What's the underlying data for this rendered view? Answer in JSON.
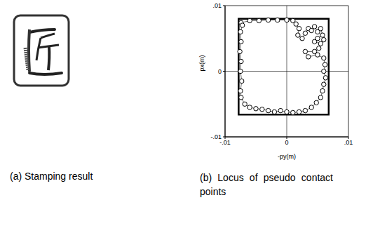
{
  "panel_a": {
    "caption": "(a) Stamping result"
  },
  "chart_data": {
    "type": "scatter",
    "caption": "(b) Locus of pseudo contact points",
    "x_label": "-py(m)",
    "y_label": "px(m)",
    "xlim": [
      -0.01,
      0.01
    ],
    "ylim": [
      -0.01,
      0.01
    ],
    "xticks": [
      {
        "value": -0.01,
        "label": "-.01"
      },
      {
        "value": 0,
        "label": "0"
      },
      {
        "value": 0.01,
        "label": ".01"
      }
    ],
    "yticks": [
      {
        "value": -0.01,
        "label": "-.01"
      },
      {
        "value": 0,
        "label": "0"
      },
      {
        "value": 0.01,
        "label": ".01"
      }
    ],
    "rectangle": {
      "x": [
        -0.0078,
        0.0068
      ],
      "y": [
        -0.0066,
        0.008
      ]
    },
    "marker": "circle",
    "line_style": "solid",
    "color": "#000000",
    "x": [
      -0.0074,
      -0.006,
      -0.0045,
      -0.003,
      -0.0015,
      0,
      0.001,
      0.0015,
      0.002,
      0.0018,
      0.0025,
      0.003,
      0.0035,
      0.004,
      0.0045,
      0.005,
      0.0055,
      0.0058,
      0.005,
      0.0045,
      0.0055,
      0.006,
      0.0052,
      0.0045,
      0.003,
      0.0035,
      0.005,
      0.006,
      0.0062,
      0.006,
      0.0063,
      0.006,
      0.0058,
      0.0055,
      0.0048,
      0.004,
      0.003,
      0.002,
      0.001,
      0,
      -0.001,
      -0.002,
      -0.003,
      -0.004,
      -0.005,
      -0.006,
      -0.0068,
      -0.0074,
      -0.0075,
      -0.0073,
      -0.0075,
      -0.0074,
      -0.0076,
      -0.0074,
      -0.0075,
      -0.0072
    ],
    "values": [
      0.0074,
      0.0077,
      0.0077,
      0.0078,
      0.0078,
      0.0078,
      0.0077,
      0.0072,
      0.0065,
      0.0055,
      0.005,
      0.0058,
      0.0065,
      0.0062,
      0.0068,
      0.006,
      0.0065,
      0.0055,
      0.005,
      0.0045,
      0.0042,
      0.0048,
      0.0035,
      0.003,
      0.003,
      0.0022,
      0.0025,
      0.002,
      0.001,
      0,
      -0.001,
      -0.002,
      -0.003,
      -0.004,
      -0.0048,
      -0.0055,
      -0.006,
      -0.0062,
      -0.0063,
      -0.0062,
      -0.006,
      -0.0062,
      -0.006,
      -0.0058,
      -0.0057,
      -0.0055,
      -0.005,
      -0.004,
      -0.003,
      -0.0015,
      0,
      0.0015,
      0.003,
      0.0045,
      0.006,
      0.007
    ]
  }
}
